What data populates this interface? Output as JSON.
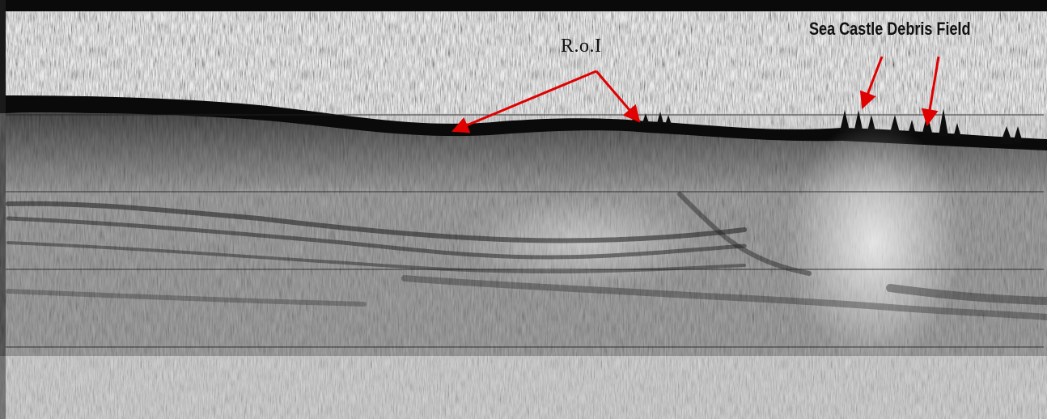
{
  "annotations": {
    "roi_label": "R.o.I",
    "field_label": "Sea Castle Debris Field",
    "arrow_color": "#e00000"
  },
  "image": {
    "kind": "sub-bottom sonar profile",
    "palette": "greyscale"
  }
}
